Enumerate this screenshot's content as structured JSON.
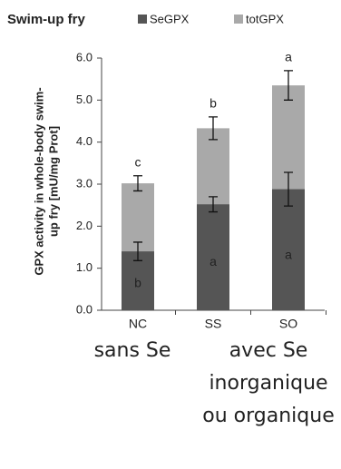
{
  "chart_data": {
    "type": "bar",
    "overlay": true,
    "title": "Swim-up fry",
    "ylabel": [
      "GPX activity in whole-body swim-",
      "up fry [mU/mg Prot]"
    ],
    "categories": [
      "NC",
      "SS",
      "SO"
    ],
    "series": [
      {
        "name": "totGPX",
        "color": "#a9a9a9",
        "values": [
          3.02,
          4.33,
          5.35
        ],
        "errors": [
          0.18,
          0.27,
          0.35
        ],
        "letters": [
          "c",
          "b",
          "a"
        ]
      },
      {
        "name": "SeGPX",
        "color": "#555555",
        "values": [
          1.4,
          2.52,
          2.88
        ],
        "errors": [
          0.22,
          0.18,
          0.4
        ],
        "letters": [
          "b",
          "a",
          "a"
        ]
      }
    ],
    "legend_order": [
      1,
      0
    ],
    "ylim": [
      0,
      6
    ],
    "yticks": [
      {
        "value": 0,
        "label": "0.0"
      },
      {
        "value": 1,
        "label": "1.0"
      },
      {
        "value": 2,
        "label": "2.0"
      },
      {
        "value": 3,
        "label": "3.0"
      },
      {
        "value": 4,
        "label": "4.0"
      },
      {
        "value": 5,
        "label": "5.0"
      },
      {
        "value": 6,
        "label": "6.0"
      }
    ],
    "annotations": [
      {
        "lines": [
          "sans Se"
        ],
        "category": 0
      },
      {
        "lines": [
          "avec Se",
          "inorganique",
          "ou organique"
        ],
        "category": 2
      }
    ]
  }
}
